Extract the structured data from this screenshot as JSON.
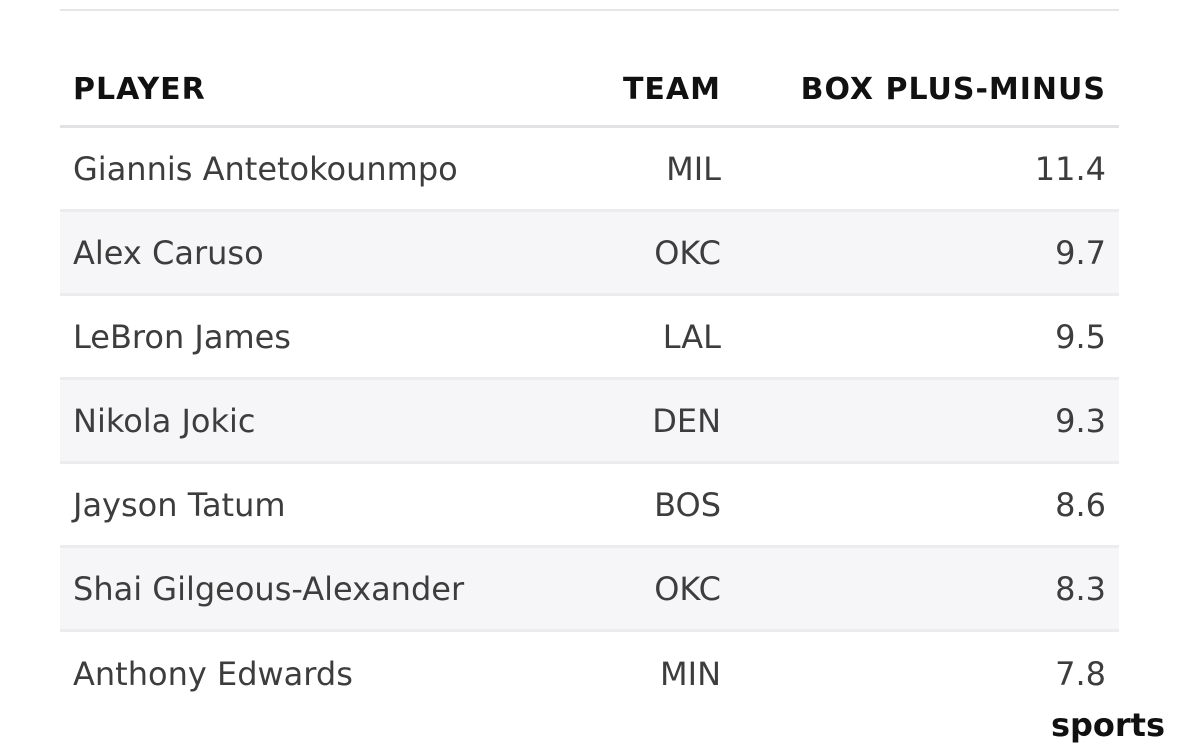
{
  "table": {
    "headers": {
      "player": "PLAYER",
      "team": "TEAM",
      "box_plus_minus": "BOX PLUS-MINUS"
    },
    "rows": [
      {
        "player": "Giannis Antetokounmpo",
        "team": "MIL",
        "box_plus_minus": "11.4"
      },
      {
        "player": "Alex Caruso",
        "team": "OKC",
        "box_plus_minus": "9.7"
      },
      {
        "player": "LeBron James",
        "team": "LAL",
        "box_plus_minus": "9.5"
      },
      {
        "player": "Nikola Jokic",
        "team": "DEN",
        "box_plus_minus": "9.3"
      },
      {
        "player": "Jayson Tatum",
        "team": "BOS",
        "box_plus_minus": "8.6"
      },
      {
        "player": "Shai Gilgeous-Alexander",
        "team": "OKC",
        "box_plus_minus": "8.3"
      },
      {
        "player": "Anthony Edwards",
        "team": "MIN",
        "box_plus_minus": "7.8"
      }
    ]
  },
  "watermark": {
    "text": "sports"
  },
  "colors": {
    "header_text": "#111111",
    "cell_text": "#3d3d3d",
    "row_alt_bg": "#f6f6f8",
    "divider": "#ececee"
  }
}
